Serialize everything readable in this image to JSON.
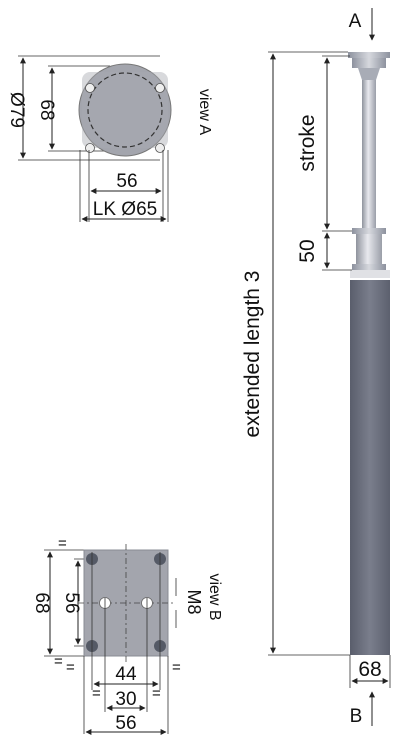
{
  "top_view": {
    "dim_outer": "Ø79",
    "dim_inner": "68",
    "dim_holes": "56",
    "dim_bolt_circle": "LK Ø65",
    "view_label": "view A"
  },
  "bottom_view": {
    "dim_height": "68",
    "dim_hole_spacing": "56",
    "dim_width_holes": "44",
    "dim_center": "30",
    "dim_width": "56",
    "thread": "M8",
    "view_label": "view B",
    "equal_mark": "="
  },
  "side_view": {
    "arrow_top": "A",
    "arrow_bottom": "B",
    "stroke_label": "stroke",
    "stroke_offset": "50",
    "extended_length": "extended length 3",
    "base_width": "68"
  },
  "colors": {
    "body": "#6c7080",
    "plate": "#a3a5ad",
    "rod": "#c9cbd3",
    "flange": "#9ea4b0"
  }
}
